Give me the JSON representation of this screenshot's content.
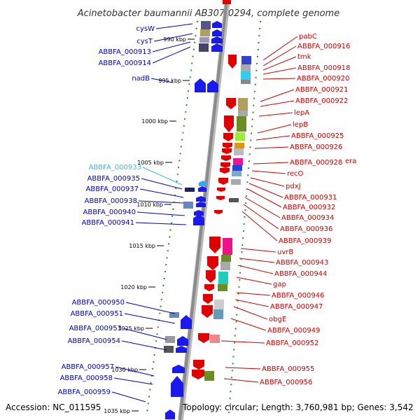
{
  "title": "Acinetobacter baumannii AB307-0294, complete genome",
  "footer": {
    "accession": "Accession: NC_011595",
    "topology": "Topology: circular; Length: 3,760,981 bp; Genes: 3,542"
  },
  "colors": {
    "left_strand": "#0000cc",
    "right_strand": "#cc0000",
    "highlight": "#33bbee",
    "backbone": "#999999"
  },
  "kbp_markers": [
    "990 kbp",
    "995 kbp",
    "1000 kbp",
    "1005 kbp",
    "1010 kbp",
    "1015 kbp",
    "1020 kbp",
    "1025 kbp",
    "1030 kbp",
    "1035 kbp"
  ],
  "left_labels": [
    "cysW",
    "cysT",
    "ABBFA_000913",
    "ABBFA_000914",
    "nadB",
    "ABBFA_000933",
    "ABBFA_000935",
    "ABBFA_000937",
    "ABBFA_000938",
    "ABBFA_000940",
    "ABBFA_000941",
    "ABBFA_000950",
    "ABBFA_000951",
    "ABBFA_000953",
    "ABBFA_000954",
    "ABBFA_000957",
    "ABBFA_000958",
    "ABBFA_000959"
  ],
  "right_labels": [
    "pabC",
    "ABBFA_000916",
    "tmk",
    "ABBFA_000918",
    "ABBFA_000920",
    "ABBFA_000921",
    "ABBFA_000922",
    "lepA",
    "lepB",
    "ABBFA_000925",
    "ABBFA_000926",
    "ABBFA_000928",
    "era",
    "recO",
    "pdxJ",
    "ABBFA_000931",
    "ABBFA_000932",
    "ABBFA_000934",
    "ABBFA_000936",
    "ABBFA_000939",
    "uvrB",
    "ABBFA_000943",
    "ABBFA_000944",
    "gap",
    "ABBFA_000946",
    "ABBFA_000947",
    "obgE",
    "ABBFA_000949",
    "ABBFA_000952",
    "ABBFA_000955",
    "ABBFA_000956"
  ]
}
